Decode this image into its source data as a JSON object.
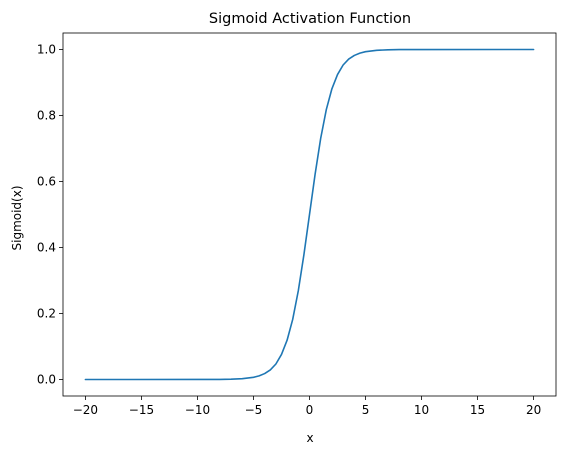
{
  "chart_data": {
    "type": "line",
    "title": "Sigmoid Activation Function",
    "xlabel": "x",
    "ylabel": "Sigmoid(x)",
    "xlim": [
      -22,
      22
    ],
    "ylim": [
      -0.05,
      1.05
    ],
    "xticks": [
      -20,
      -15,
      -10,
      -5,
      0,
      5,
      10,
      15,
      20
    ],
    "xtick_labels": [
      "−20",
      "−15",
      "−10",
      "−5",
      "0",
      "5",
      "10",
      "15",
      "20"
    ],
    "yticks": [
      0.0,
      0.2,
      0.4,
      0.6,
      0.8,
      1.0
    ],
    "ytick_labels": [
      "0.0",
      "0.2",
      "0.4",
      "0.6",
      "0.8",
      "1.0"
    ],
    "grid": false,
    "series": [
      {
        "color": "#1f77b4",
        "x": [
          -20,
          -10,
          -8,
          -7,
          -6,
          -5,
          -4.5,
          -4,
          -3.5,
          -3,
          -2.5,
          -2,
          -1.5,
          -1,
          -0.5,
          0,
          0.5,
          1,
          1.5,
          2,
          2.5,
          3,
          3.5,
          4,
          4.5,
          5,
          6,
          7,
          8,
          10,
          20
        ],
        "y": [
          0.0,
          5e-05,
          0.0003,
          0.0009,
          0.0025,
          0.0067,
          0.011,
          0.018,
          0.029,
          0.047,
          0.076,
          0.119,
          0.182,
          0.269,
          0.378,
          0.5,
          0.622,
          0.731,
          0.818,
          0.881,
          0.924,
          0.953,
          0.971,
          0.982,
          0.989,
          0.9933,
          0.9975,
          0.9991,
          0.9997,
          0.99995,
          1.0
        ]
      }
    ]
  }
}
